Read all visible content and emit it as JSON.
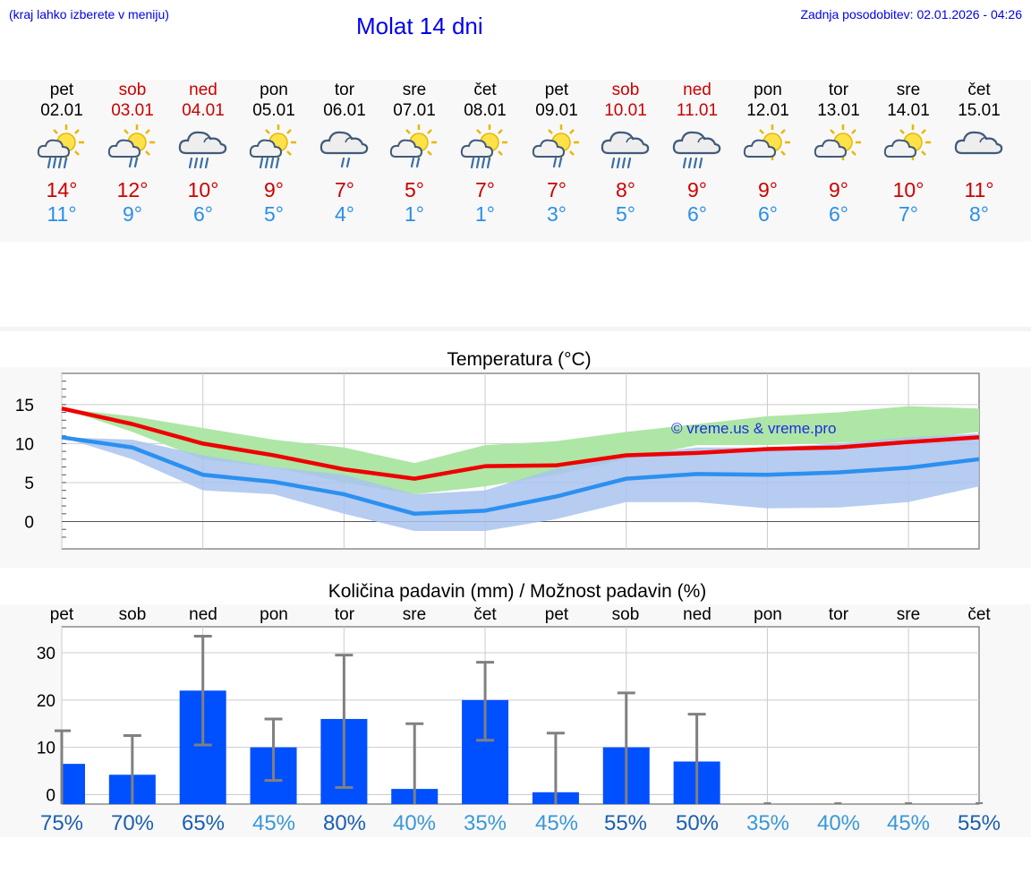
{
  "header": {
    "hint": "(kraj lahko izberete v meniju)",
    "title": "Molat 14 dni",
    "updated": "Zadnja posodobitev: 02.01.2026 - 04:26"
  },
  "days": [
    {
      "dow": "pet",
      "date": "02.01",
      "weekend": false,
      "icon": "sun-cloud-rain-icon",
      "max": "14°",
      "min": "11°"
    },
    {
      "dow": "sob",
      "date": "03.01",
      "weekend": true,
      "icon": "sun-cloud-drizzle-icon",
      "max": "12°",
      "min": "9°"
    },
    {
      "dow": "ned",
      "date": "04.01",
      "weekend": true,
      "icon": "cloud-rain-icon",
      "max": "10°",
      "min": "6°"
    },
    {
      "dow": "pon",
      "date": "05.01",
      "weekend": false,
      "icon": "sun-cloud-rain-icon",
      "max": "9°",
      "min": "5°"
    },
    {
      "dow": "tor",
      "date": "06.01",
      "weekend": false,
      "icon": "cloud-drizzle-icon",
      "max": "7°",
      "min": "4°"
    },
    {
      "dow": "sre",
      "date": "07.01",
      "weekend": false,
      "icon": "sun-cloud-drizzle-icon",
      "max": "5°",
      "min": "1°"
    },
    {
      "dow": "čet",
      "date": "08.01",
      "weekend": false,
      "icon": "sun-cloud-rain-icon",
      "max": "7°",
      "min": "1°"
    },
    {
      "dow": "pet",
      "date": "09.01",
      "weekend": false,
      "icon": "sun-cloud-drizzle-icon",
      "max": "7°",
      "min": "3°"
    },
    {
      "dow": "sob",
      "date": "10.01",
      "weekend": true,
      "icon": "cloud-rain-icon",
      "max": "8°",
      "min": "5°"
    },
    {
      "dow": "ned",
      "date": "11.01",
      "weekend": true,
      "icon": "cloud-rain-icon",
      "max": "9°",
      "min": "6°"
    },
    {
      "dow": "pon",
      "date": "12.01",
      "weekend": false,
      "icon": "sun-cloud-icon",
      "max": "9°",
      "min": "6°"
    },
    {
      "dow": "tor",
      "date": "13.01",
      "weekend": false,
      "icon": "sun-cloud-icon",
      "max": "9°",
      "min": "6°"
    },
    {
      "dow": "sre",
      "date": "14.01",
      "weekend": false,
      "icon": "sun-cloud-icon",
      "max": "10°",
      "min": "7°"
    },
    {
      "dow": "čet",
      "date": "15.01",
      "weekend": false,
      "icon": "cloud-icon",
      "max": "11°",
      "min": "8°"
    }
  ],
  "colors": {
    "max_line": "#ee0000",
    "min_line": "#2b90f0",
    "max_band": "#aee6a6",
    "min_band": "#a9c3ef",
    "bar": "#0050ff",
    "whisker": "#808080",
    "title_blue": "#0000ee",
    "pct_dark": "#1b5fb0",
    "pct_light": "#3a98d8"
  },
  "chart_data": [
    {
      "type": "line",
      "title": "Temperatura (°C)",
      "watermark": "© vreme.us & vreme.pro",
      "xlabel": "",
      "ylabel": "",
      "ylim": [
        -3.5,
        19
      ],
      "yticks": [
        "15",
        "10",
        "5",
        "0"
      ],
      "ytick_values": [
        15,
        10,
        5,
        0
      ],
      "x": [
        0,
        1,
        2,
        3,
        4,
        5,
        6,
        7,
        8,
        9,
        10,
        11,
        12,
        13
      ],
      "series": [
        {
          "name": "max",
          "values": [
            14.5,
            12.5,
            10,
            8.5,
            6.7,
            5.5,
            7.1,
            7.2,
            8.5,
            8.8,
            9.3,
            9.5,
            10.2,
            10.8
          ]
        },
        {
          "name": "min",
          "values": [
            10.8,
            9.5,
            6,
            5.1,
            3.5,
            1,
            1.4,
            3.2,
            5.5,
            6.1,
            6,
            6.3,
            6.9,
            8
          ]
        },
        {
          "name": "max_band_high",
          "values": [
            14.5,
            13.5,
            12,
            10.5,
            9.5,
            7.5,
            9.8,
            10.3,
            11.5,
            12.5,
            13.5,
            14,
            14.8,
            14.5
          ]
        },
        {
          "name": "max_band_low",
          "values": [
            14.5,
            11.5,
            8,
            7,
            5,
            3.5,
            4.5,
            6,
            8,
            9.8,
            9.8,
            10.1,
            10.5,
            11.5
          ]
        },
        {
          "name": "min_band_high",
          "values": [
            10.8,
            10.5,
            8.5,
            7,
            6,
            3.5,
            4,
            6.8,
            8.5,
            9.5,
            9.5,
            10,
            10.8,
            11.3
          ]
        },
        {
          "name": "min_band_low",
          "values": [
            10.8,
            8,
            4,
            3.5,
            1,
            -1.2,
            -1.2,
            0.3,
            2.5,
            2.5,
            1.7,
            1.8,
            2.5,
            4.5
          ]
        }
      ]
    },
    {
      "type": "bar",
      "title": "Količina padavin (mm) / Možnost padavin (%)",
      "categories": [
        "pet",
        "sob",
        "ned",
        "pon",
        "tor",
        "sre",
        "čet",
        "pet",
        "sob",
        "ned",
        "pon",
        "tor",
        "sre",
        "čet"
      ],
      "ylim": [
        -2,
        35.5
      ],
      "yticks": [
        "30",
        "20",
        "10",
        "0"
      ],
      "ytick_values": [
        30,
        20,
        10,
        0
      ],
      "values": [
        6.5,
        4.2,
        22,
        10,
        16,
        1.2,
        20,
        0.5,
        10,
        7,
        0,
        0,
        0,
        0
      ],
      "error_low": [
        0,
        0,
        10.5,
        3,
        1.5,
        0,
        11.5,
        0,
        0,
        0,
        0,
        0,
        0,
        0
      ],
      "error_high": [
        13.5,
        12.5,
        33.5,
        16,
        29.5,
        15,
        28,
        13,
        21.5,
        17,
        0,
        0,
        0,
        0
      ],
      "probability": [
        "75%",
        "70%",
        "65%",
        "45%",
        "80%",
        "40%",
        "35%",
        "45%",
        "55%",
        "50%",
        "35%",
        "40%",
        "45%",
        "55%"
      ],
      "probability_dark": [
        true,
        true,
        true,
        false,
        true,
        false,
        false,
        false,
        true,
        true,
        false,
        false,
        false,
        true
      ]
    }
  ]
}
